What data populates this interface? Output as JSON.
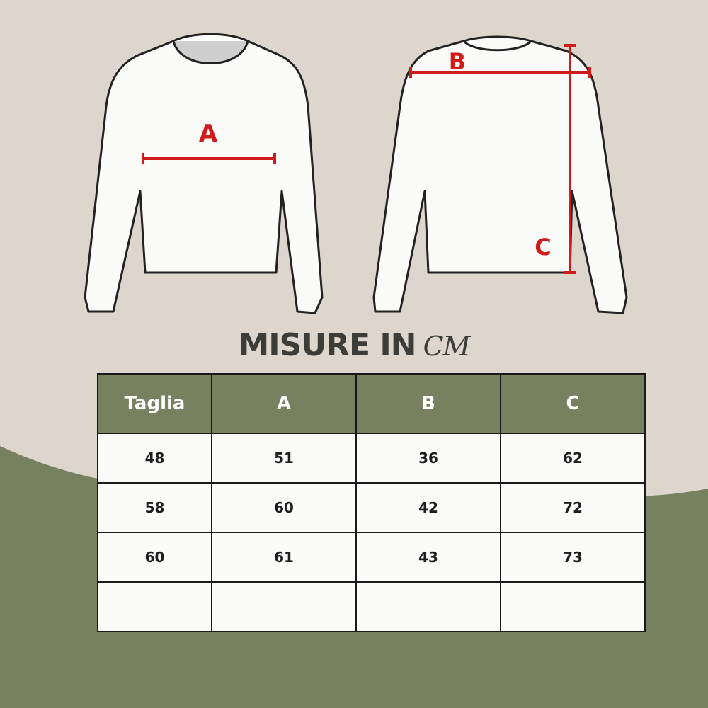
{
  "colors": {
    "background": "#dcd6cc",
    "accent_green": "#77805f",
    "title_text": "#3c3d38",
    "measure_red": "#d11a1a"
  },
  "diagram": {
    "front_label": "A",
    "back_labels": [
      "B",
      "C"
    ]
  },
  "title": {
    "main": "MISURE IN",
    "unit": "CM"
  },
  "table": {
    "headers": [
      "Taglia",
      "A",
      "B",
      "C"
    ],
    "rows": [
      [
        "48",
        "51",
        "36",
        "62"
      ],
      [
        "58",
        "60",
        "42",
        "72"
      ],
      [
        "60",
        "61",
        "43",
        "73"
      ],
      [
        "",
        "",
        "",
        ""
      ]
    ]
  }
}
